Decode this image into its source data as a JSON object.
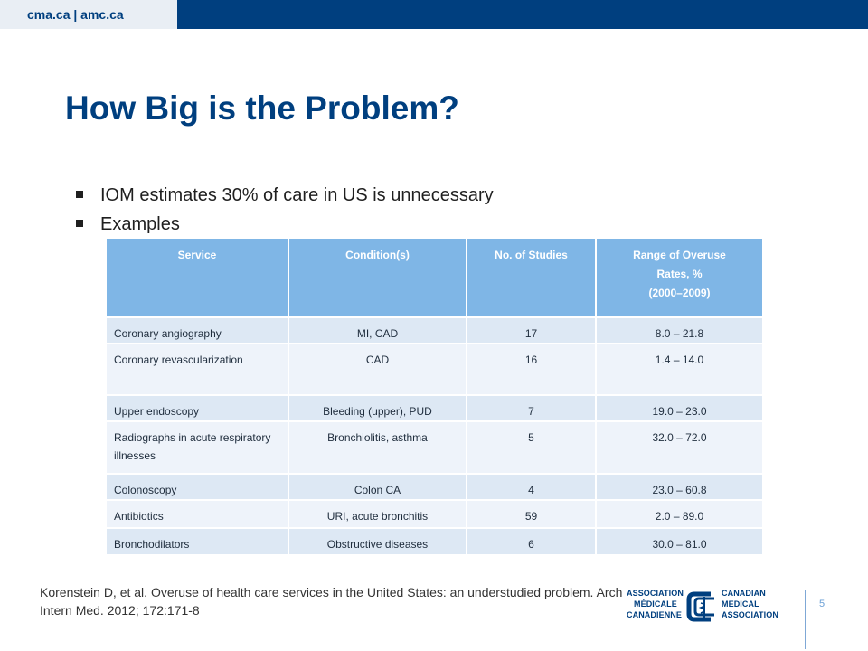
{
  "header": {
    "site_label": "cma.ca | amc.ca"
  },
  "slide": {
    "title": "How Big is the Problem?",
    "bullets": [
      "IOM estimates 30% of care in US is unnecessary",
      "Examples"
    ]
  },
  "table": {
    "headers": [
      "Service",
      "Condition(s)",
      "No. of Studies",
      "Range of Overuse Rates, % (2000–2009)"
    ],
    "header_last_lines": [
      "Range of Overuse",
      "Rates, %",
      "(2000–2009)"
    ],
    "rows": [
      [
        "Coronary angiography",
        "MI, CAD",
        "17",
        "8.0 – 21.8"
      ],
      [
        "Coronary revascularization",
        "CAD",
        "16",
        "1.4 – 14.0"
      ],
      [
        "Upper endoscopy",
        "Bleeding (upper), PUD",
        "7",
        "19.0 – 23.0"
      ],
      [
        "Radiographs in acute respiratory illnesses",
        "Bronchiolitis, asthma",
        "5",
        "32.0 – 72.0"
      ],
      [
        "Colonoscopy",
        "Colon CA",
        "4",
        "23.0 – 60.8"
      ],
      [
        "Antibiotics",
        "URI, acute bronchitis",
        "59",
        "2.0 – 89.0"
      ],
      [
        "Bronchodilators",
        "Obstructive diseases",
        "6",
        "30.0 – 81.0"
      ]
    ]
  },
  "citation": "Korenstein D, et al. Overuse of health care services in the United States: an understudied problem. Arch Intern Med. 2012; 172:171-8",
  "logo": {
    "left_lines": [
      "Association",
      "Médicale",
      "Canadienne"
    ],
    "right_lines": [
      "Canadian",
      "Medical",
      "Association"
    ],
    "icon": "caduceus-c-mark-icon"
  },
  "page_number": "5",
  "colors": {
    "brand_navy": "#003f7f",
    "header_cell": "#7fb6e6",
    "row_alt": "#dde8f4",
    "row_plain": "#eef3fa"
  }
}
